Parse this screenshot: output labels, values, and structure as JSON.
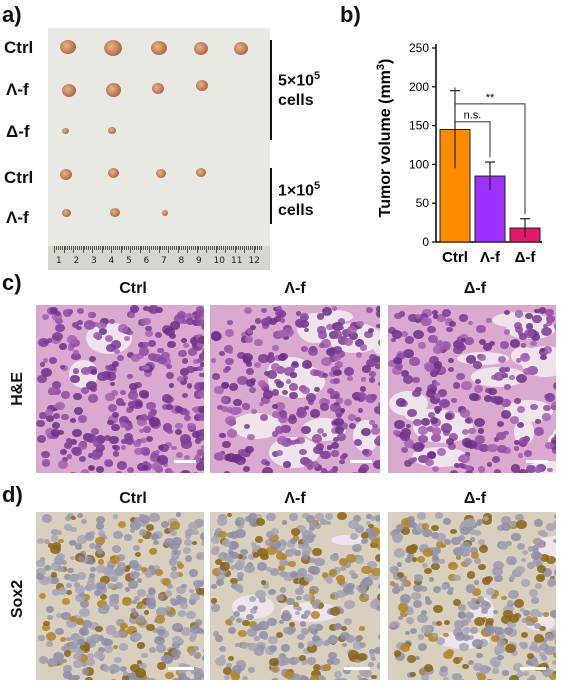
{
  "panel_a": {
    "letter": "a)",
    "row_labels": [
      "Ctrl",
      "Λ-f",
      "Δ-f",
      "Ctrl",
      "Λ-f"
    ],
    "group1": {
      "count": "5×10",
      "exp": "5",
      "unit": "cells"
    },
    "group2": {
      "count": "1×10",
      "exp": "5",
      "unit": "cells"
    },
    "ruler_numbers": [
      "1",
      "2",
      "3",
      "4",
      "5",
      "6",
      "7",
      "8",
      "9",
      "10",
      "11",
      "12"
    ]
  },
  "panel_b": {
    "letter": "b)",
    "chart_data": {
      "type": "bar",
      "categories": [
        "Ctrl",
        "Λ-f",
        "Δ-f"
      ],
      "values": [
        145,
        85,
        18
      ],
      "errors": [
        50,
        18,
        12
      ],
      "colors": [
        "#ff8c00",
        "#9b30ff",
        "#e0196e"
      ],
      "ylabel": "Tumor volume (mm3)",
      "ylabel_main": "Tumor volume (mm",
      "ylabel_sup": "3",
      "ylabel_end": ")",
      "ylim": [
        0,
        250
      ],
      "yticks": [
        0,
        50,
        100,
        150,
        200,
        250
      ],
      "significance": [
        {
          "from": 0,
          "to": 1,
          "label": "n.s."
        },
        {
          "from": 0,
          "to": 2,
          "label": "**"
        }
      ]
    }
  },
  "panel_c": {
    "letter": "c)",
    "side_label": "H&E",
    "columns": [
      "Ctrl",
      "Λ-f",
      "Δ-f"
    ]
  },
  "panel_d": {
    "letter": "d)",
    "side_label": "Sox2",
    "columns": [
      "Ctrl",
      "Λ-f",
      "Δ-f"
    ]
  }
}
